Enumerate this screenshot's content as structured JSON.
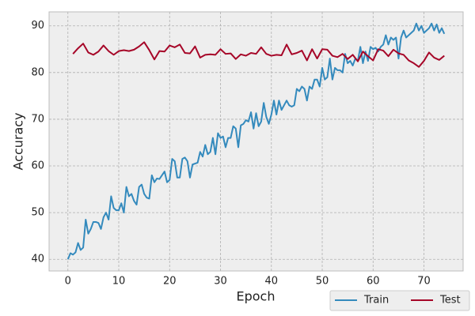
{
  "chart_data": {
    "type": "line",
    "xlabel": "Epoch",
    "ylabel": "Accuracy",
    "xlim": [
      -3.7,
      77.7
    ],
    "ylim": [
      37.5,
      93.0
    ],
    "xticks": [
      0,
      10,
      20,
      30,
      40,
      50,
      60,
      70
    ],
    "yticks": [
      40,
      50,
      60,
      70,
      80,
      90
    ],
    "grid": true,
    "legend": "lower right",
    "series": [
      {
        "name": "Train",
        "color": "#348abd",
        "x": [
          0,
          0.5,
          1,
          1.5,
          2,
          2.5,
          3,
          3.5,
          4,
          4.5,
          5,
          5.5,
          6,
          6.5,
          7,
          7.5,
          8,
          8.5,
          9,
          9.5,
          10,
          10.5,
          11,
          11.5,
          12,
          12.5,
          13,
          13.5,
          14,
          14.5,
          15,
          15.5,
          16,
          16.5,
          17,
          17.5,
          18,
          18.5,
          19,
          19.5,
          20,
          20.5,
          21,
          21.5,
          22,
          22.5,
          23,
          23.5,
          24,
          24.5,
          25,
          25.5,
          26,
          26.5,
          27,
          27.5,
          28,
          28.5,
          29,
          29.5,
          30,
          30.5,
          31,
          31.5,
          32,
          32.5,
          33,
          33.5,
          34,
          34.5,
          35,
          35.5,
          36,
          36.5,
          37,
          37.5,
          38,
          38.5,
          39,
          39.5,
          40,
          40.5,
          41,
          41.5,
          42,
          42.5,
          43,
          43.5,
          44,
          44.5,
          45,
          45.5,
          46,
          46.5,
          47,
          47.5,
          48,
          48.5,
          49,
          49.5,
          50,
          50.5,
          51,
          51.5,
          52,
          52.5,
          53,
          53.5,
          54,
          54.5,
          55,
          55.5,
          56,
          56.5,
          57,
          57.5,
          58,
          58.5,
          59,
          59.5,
          60,
          60.5,
          61,
          61.5,
          62,
          62.5,
          63,
          63.5,
          64,
          64.5,
          65,
          65.5,
          66,
          66.5,
          67,
          67.5,
          68,
          68.5,
          69,
          69.5,
          70,
          70.5,
          71,
          71.5,
          72,
          72.5,
          73,
          73.5,
          74
        ],
        "values": [
          40,
          41.3,
          41,
          41.5,
          43.5,
          42,
          42.5,
          48.5,
          45.5,
          46.5,
          48,
          48,
          47.8,
          46.5,
          49,
          50,
          48.5,
          53.5,
          51,
          50.5,
          50.5,
          52,
          50,
          55.5,
          53.5,
          54,
          52.5,
          51.7,
          55.5,
          56,
          54,
          53.2,
          53,
          58,
          56.5,
          57.3,
          57.2,
          58,
          58.8,
          56.5,
          57,
          61.5,
          61,
          57.5,
          57.5,
          61.5,
          61.8,
          61,
          57.5,
          60.3,
          60.5,
          60.7,
          63,
          62,
          64.5,
          62.5,
          63,
          66,
          62.5,
          67,
          66,
          66.3,
          64,
          66,
          66,
          68.5,
          68,
          64,
          68.7,
          69,
          69.8,
          69.5,
          71.5,
          68,
          71.3,
          68.5,
          69.5,
          73.5,
          70.5,
          69,
          71,
          74,
          71,
          74,
          72,
          73,
          74,
          73,
          72.7,
          73,
          76.5,
          76,
          77,
          76.5,
          74,
          77,
          76.5,
          78.5,
          78.5,
          77,
          81,
          78.5,
          79,
          83,
          78.5,
          81,
          80.5,
          80.5,
          80,
          84,
          82,
          82.5,
          81.5,
          83,
          82.5,
          85.5,
          82,
          84.5,
          82.5,
          85.5,
          85,
          85.3,
          84.5,
          85.5,
          86,
          88,
          86,
          87.5,
          87,
          87.5,
          83,
          87.5,
          89,
          87.5,
          88,
          88.5,
          89,
          90.5,
          89,
          90,
          88.5,
          89,
          89.5,
          90.5,
          89,
          90.3,
          88.5,
          89.5,
          88.3
        ]
      },
      {
        "name": "Test",
        "color": "#a60628",
        "x": [
          1,
          2,
          3,
          4,
          5,
          6,
          7,
          8,
          9,
          10,
          11,
          12,
          13,
          14,
          15,
          16,
          17,
          18,
          19,
          20,
          21,
          22,
          23,
          24,
          25,
          26,
          27,
          28,
          29,
          30,
          31,
          32,
          33,
          34,
          35,
          36,
          37,
          38,
          39,
          40,
          41,
          42,
          43,
          44,
          45,
          46,
          47,
          48,
          49,
          50,
          51,
          52,
          53,
          54,
          55,
          56,
          57,
          58,
          59,
          60,
          61,
          62,
          63,
          64,
          65,
          66,
          67,
          68,
          69,
          70,
          71,
          72,
          73,
          74
        ],
        "values": [
          84,
          85.2,
          86.2,
          84.3,
          83.8,
          84.5,
          85.8,
          84.6,
          83.8,
          84.6,
          84.8,
          84.6,
          84.9,
          85.6,
          86.5,
          84.8,
          82.8,
          84.6,
          84.5,
          85.8,
          85.4,
          86,
          84.2,
          84.1,
          85.6,
          83.2,
          83.8,
          83.9,
          83.8,
          85,
          84,
          84.1,
          82.9,
          83.9,
          83.6,
          84.2,
          84,
          85.4,
          84,
          83.6,
          83.8,
          83.7,
          86,
          83.9,
          84.2,
          84.7,
          82.6,
          85,
          83,
          85,
          84.9,
          83.6,
          83.3,
          84,
          82.9,
          83.8,
          82.4,
          84.5,
          83.5,
          82.6,
          85,
          84.7,
          83.5,
          84.9,
          84.1,
          83.8,
          82.6,
          82,
          81.2,
          82.5,
          84.3,
          83.2,
          82.7,
          83.6
        ]
      }
    ]
  }
}
